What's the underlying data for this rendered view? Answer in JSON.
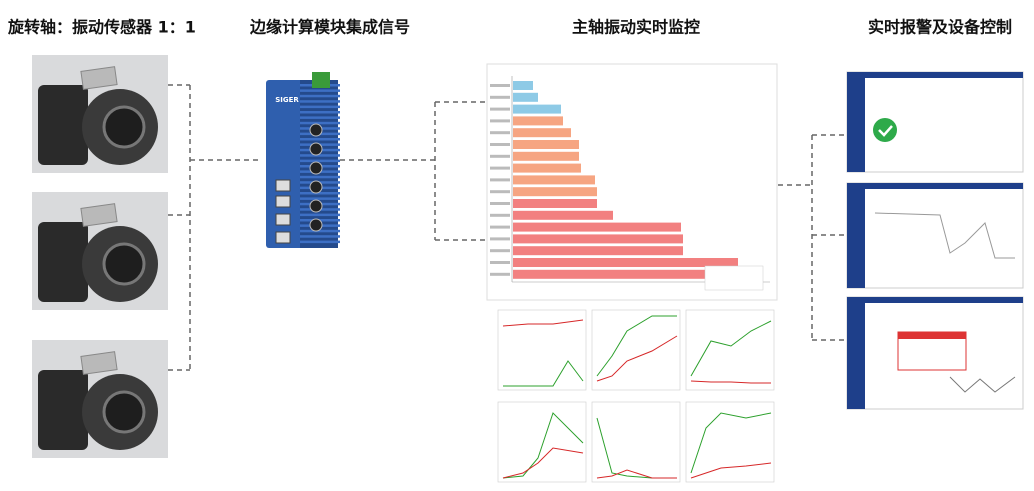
{
  "headers": [
    "旋转轴：振动传感器 1：1",
    "边缘计算模块集成信号",
    "主轴振动实时监控",
    "实时报警及设备控制"
  ],
  "device": {
    "label": "SIGER"
  }
}
